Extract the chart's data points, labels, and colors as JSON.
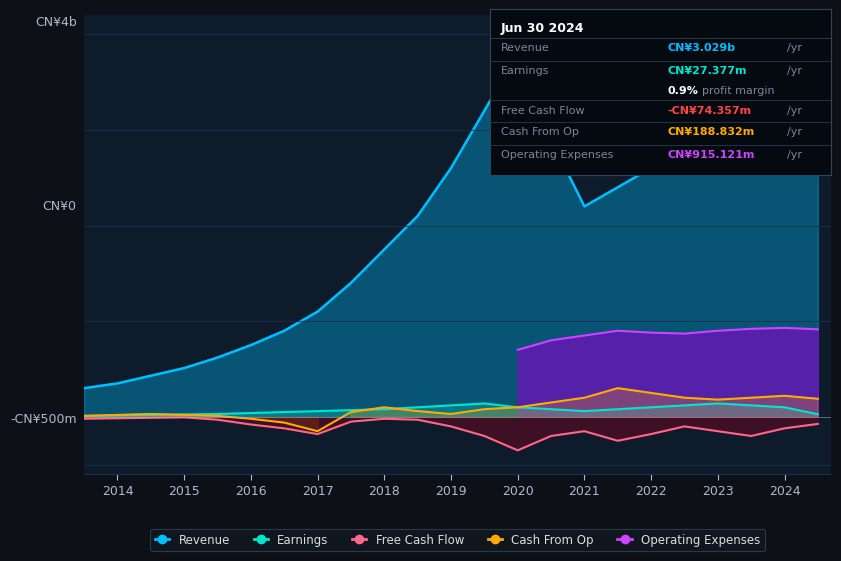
{
  "bg_color": "#0d1117",
  "plot_bg_color": "#0d1b2a",
  "grid_color": "#1e3050",
  "text_color": "#8899aa",
  "ylabel_cn4b": "CN¥4b",
  "ylabel_cn0": "CN¥0",
  "ylabel_cnm500": "-CN¥500m",
  "years_ticks": [
    2014,
    2015,
    2016,
    2017,
    2018,
    2019,
    2020,
    2021,
    2022,
    2023,
    2024
  ],
  "tooltip": {
    "date": "Jun 30 2024",
    "revenue_label": "Revenue",
    "revenue_val": "CN¥3.029b",
    "revenue_color": "#00bfff",
    "earnings_label": "Earnings",
    "earnings_val": "CN¥27.377m",
    "earnings_color": "#00e5cc",
    "margin_val": "0.9%",
    "margin_text": "profit margin",
    "fcf_label": "Free Cash Flow",
    "fcf_val": "-CN¥74.357m",
    "fcf_color": "#ff4444",
    "cashop_label": "Cash From Op",
    "cashop_val": "CN¥188.832m",
    "cashop_color": "#ffaa00",
    "opex_label": "Operating Expenses",
    "opex_val": "CN¥915.121m",
    "opex_color": "#cc44ff"
  },
  "legend": [
    {
      "label": "Revenue",
      "color": "#00bfff"
    },
    {
      "label": "Earnings",
      "color": "#00e5cc"
    },
    {
      "label": "Free Cash Flow",
      "color": "#ff6688"
    },
    {
      "label": "Cash From Op",
      "color": "#ffaa00"
    },
    {
      "label": "Operating Expenses",
      "color": "#cc44ff"
    }
  ],
  "x": [
    2013.5,
    2014.0,
    2014.5,
    2015.0,
    2015.5,
    2016.0,
    2016.5,
    2017.0,
    2017.5,
    2018.0,
    2018.5,
    2019.0,
    2019.5,
    2020.0,
    2020.5,
    2021.0,
    2021.5,
    2022.0,
    2022.5,
    2023.0,
    2023.5,
    2024.0,
    2024.5
  ],
  "revenue": [
    300,
    350,
    430,
    510,
    620,
    750,
    900,
    1100,
    1400,
    1750,
    2100,
    2600,
    3200,
    3800,
    2900,
    2200,
    2400,
    2600,
    2700,
    2850,
    2900,
    3000,
    3029
  ],
  "earnings": [
    10,
    15,
    20,
    25,
    30,
    40,
    50,
    60,
    70,
    80,
    100,
    120,
    140,
    100,
    80,
    60,
    80,
    100,
    120,
    140,
    120,
    100,
    27
  ],
  "free_cash_flow": [
    -20,
    -15,
    -10,
    -5,
    -30,
    -80,
    -120,
    -180,
    -50,
    -20,
    -30,
    -100,
    -200,
    -350,
    -200,
    -150,
    -250,
    -180,
    -100,
    -150,
    -200,
    -120,
    -74
  ],
  "cash_from_op": [
    10,
    20,
    30,
    20,
    10,
    -20,
    -60,
    -150,
    50,
    100,
    60,
    30,
    80,
    100,
    150,
    200,
    300,
    250,
    200,
    180,
    200,
    220,
    189
  ],
  "operating_expenses": [
    0.0,
    0.0,
    0.0,
    0.0,
    0.0,
    0.0,
    0.0,
    0.0,
    0.0,
    0.0,
    0.0,
    0.0,
    0.0,
    700,
    800,
    850,
    900,
    880,
    870,
    900,
    920,
    930,
    915
  ],
  "ylim": [
    -600,
    4200
  ],
  "xlim": [
    2013.5,
    2024.7
  ]
}
